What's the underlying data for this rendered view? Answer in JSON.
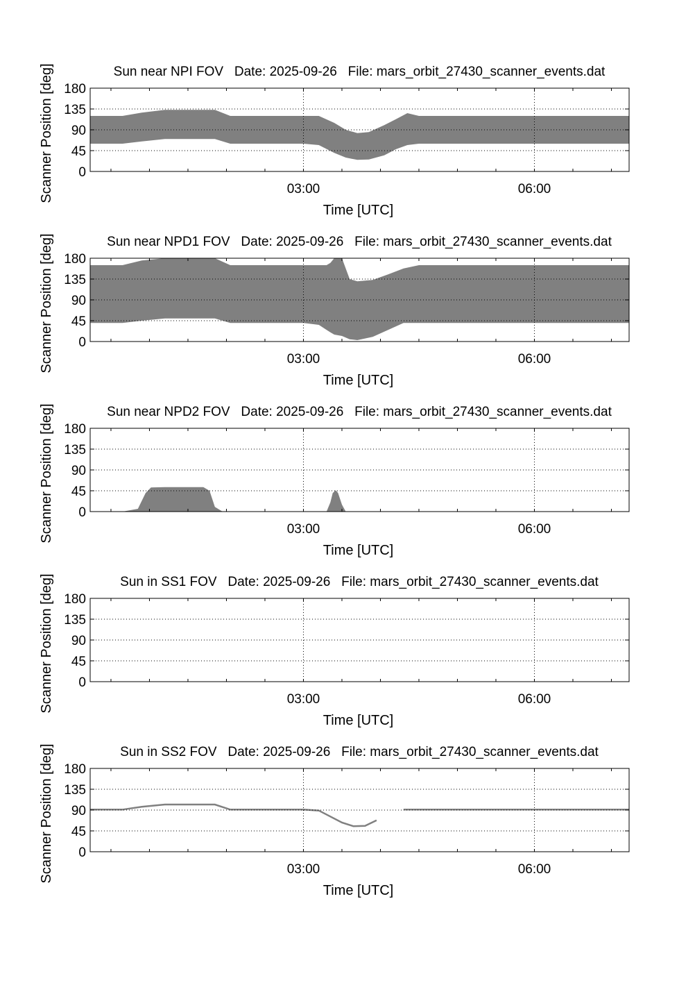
{
  "figure": {
    "ylabel": "Scanner Position [deg]",
    "xlabel": "Time [UTC]",
    "yticks": [
      "0",
      "45",
      "90",
      "135",
      "180"
    ],
    "xticks": [
      "03:00",
      "06:00"
    ],
    "colors": {
      "fill": "#808080",
      "line": "#808080",
      "axis": "#000000",
      "grid": "#000000"
    }
  },
  "chart_data": [
    {
      "type": "area",
      "title": "Sun near NPI FOV   Date: 2025-09-26   File: mars_orbit_27430_scanner_events.dat",
      "xlabel": "Time [UTC]",
      "ylabel": "Scanner Position [deg]",
      "x_unit": "hours UTC",
      "xlim": [
        0.23,
        7.23
      ],
      "ylim": [
        0,
        180
      ],
      "xticks": [
        "03:00",
        "06:00"
      ],
      "yticks": [
        0,
        45,
        90,
        135,
        180
      ],
      "grid": "dotted",
      "bands": [
        {
          "x": [
            0.23,
            0.65,
            0.9,
            1.2,
            1.5,
            1.85,
            2.05,
            2.5,
            3.0,
            3.2,
            3.4,
            3.55,
            3.7,
            3.85,
            4.05,
            4.2,
            4.35,
            4.5,
            5.0,
            6.0,
            7.23
          ],
          "lower": [
            60,
            60,
            65,
            70,
            70,
            70,
            60,
            60,
            60,
            57,
            40,
            30,
            25,
            26,
            35,
            48,
            57,
            60,
            60,
            60,
            60
          ],
          "upper": [
            120,
            120,
            127,
            133,
            133,
            133,
            120,
            120,
            120,
            120,
            105,
            90,
            83,
            85,
            100,
            113,
            126,
            120,
            120,
            120,
            120
          ]
        }
      ]
    },
    {
      "type": "area",
      "title": "Sun near NPD1 FOV   Date: 2025-09-26   File: mars_orbit_27430_scanner_events.dat",
      "xlabel": "Time [UTC]",
      "ylabel": "Scanner Position [deg]",
      "x_unit": "hours UTC",
      "xlim": [
        0.23,
        7.23
      ],
      "ylim": [
        0,
        180
      ],
      "xticks": [
        "03:00",
        "06:00"
      ],
      "yticks": [
        0,
        45,
        90,
        135,
        180
      ],
      "grid": "dotted",
      "bands": [
        {
          "x": [
            0.23,
            0.65,
            0.9,
            1.2,
            1.55,
            1.85,
            2.05,
            2.5,
            3.0,
            3.2,
            3.3,
            3.35,
            3.4,
            3.5,
            3.6,
            3.7,
            3.9,
            4.1,
            4.3,
            4.5,
            5.0,
            6.0,
            7.23
          ],
          "lower": [
            40,
            40,
            45,
            50,
            50,
            50,
            40,
            40,
            40,
            36,
            25,
            20,
            15,
            12,
            5,
            3,
            10,
            25,
            40,
            40,
            40,
            40,
            40
          ],
          "upper": [
            165,
            165,
            175,
            180,
            180,
            180,
            165,
            165,
            165,
            165,
            165,
            170,
            180,
            180,
            135,
            130,
            133,
            145,
            158,
            165,
            165,
            165,
            165
          ]
        }
      ]
    },
    {
      "type": "area",
      "title": "Sun near NPD2 FOV   Date: 2025-09-26   File: mars_orbit_27430_scanner_events.dat",
      "xlabel": "Time [UTC]",
      "ylabel": "Scanner Position [deg]",
      "x_unit": "hours UTC",
      "xlim": [
        0.23,
        7.23
      ],
      "ylim": [
        0,
        180
      ],
      "xticks": [
        "03:00",
        "06:00"
      ],
      "yticks": [
        0,
        45,
        90,
        135,
        180
      ],
      "grid": "dotted",
      "bands": [
        {
          "x": [
            0.65,
            0.85,
            0.95,
            1.02,
            1.2,
            1.5,
            1.7,
            1.78,
            1.85,
            1.95
          ],
          "lower": [
            0,
            0,
            0,
            0,
            0,
            0,
            0,
            0,
            0,
            0
          ],
          "upper": [
            0,
            6,
            40,
            52,
            53,
            53,
            53,
            45,
            10,
            0
          ]
        },
        {
          "x": [
            3.3,
            3.35,
            3.38,
            3.42,
            3.45,
            3.5,
            3.55
          ],
          "lower": [
            0,
            0,
            0,
            0,
            0,
            0,
            0
          ],
          "upper": [
            0,
            20,
            40,
            46,
            40,
            15,
            0
          ]
        }
      ]
    },
    {
      "type": "area",
      "title": "Sun in SS1 FOV   Date: 2025-09-26   File: mars_orbit_27430_scanner_events.dat",
      "xlabel": "Time [UTC]",
      "ylabel": "Scanner Position [deg]",
      "x_unit": "hours UTC",
      "xlim": [
        0.23,
        7.23
      ],
      "ylim": [
        0,
        180
      ],
      "xticks": [
        "03:00",
        "06:00"
      ],
      "yticks": [
        0,
        45,
        90,
        135,
        180
      ],
      "grid": "dotted",
      "bands": []
    },
    {
      "type": "line",
      "title": "Sun in SS2 FOV   Date: 2025-09-26   File: mars_orbit_27430_scanner_events.dat",
      "xlabel": "Time [UTC]",
      "ylabel": "Scanner Position [deg]",
      "x_unit": "hours UTC",
      "xlim": [
        0.23,
        7.23
      ],
      "ylim": [
        0,
        180
      ],
      "xticks": [
        "03:00",
        "06:00"
      ],
      "yticks": [
        0,
        45,
        90,
        135,
        180
      ],
      "grid": "dotted",
      "lines": [
        {
          "x": [
            0.23,
            0.65,
            0.9,
            1.2,
            1.55,
            1.85,
            2.05,
            2.5,
            3.0,
            3.2,
            3.35,
            3.5,
            3.65,
            3.8,
            3.95
          ],
          "y": [
            91,
            91,
            97,
            102,
            102,
            102,
            91,
            91,
            91,
            89,
            76,
            63,
            55,
            56,
            68
          ]
        },
        {
          "x": [
            4.3,
            4.5,
            5.0,
            6.0,
            7.23
          ],
          "y": [
            91,
            91,
            91,
            91,
            91
          ]
        }
      ]
    }
  ]
}
